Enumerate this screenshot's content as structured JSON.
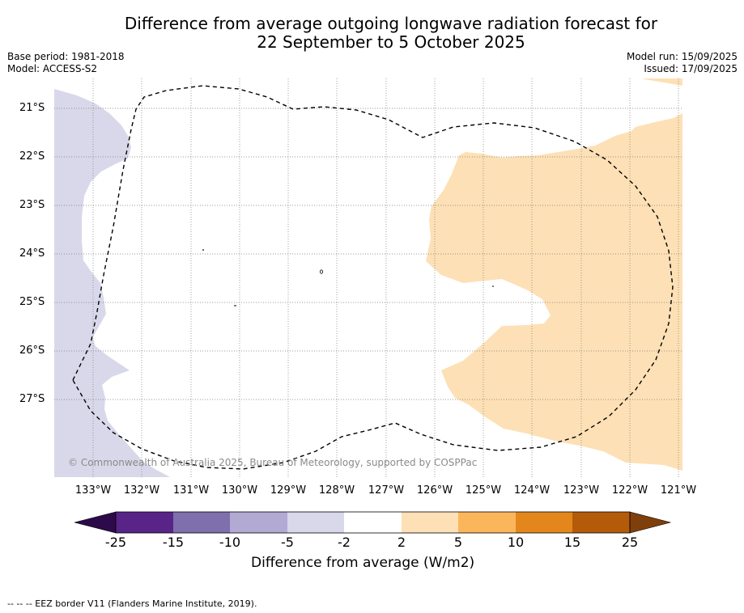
{
  "title_line1": "Difference from average outgoing longwave radiation forecast for",
  "title_line2": "22 September to 5 October 2025",
  "base_period": "Base period: 1981-2018",
  "model": "Model: ACCESS-S2",
  "model_run": "Model run: 15/09/2025",
  "issued": "Issued: 17/09/2025",
  "copyright": "© Commonwealth of Australia 2025, Bureau of Meteorology, supported by COSPPac",
  "footnote": "--  --  -- EEZ border V11 (Flanders Marine Institute, 2019).",
  "lat_labels": [
    "21°S",
    "22°S",
    "23°S",
    "24°S",
    "25°S",
    "26°S",
    "27°S"
  ],
  "lon_labels": [
    "133°W",
    "132°W",
    "131°W",
    "130°W",
    "129°W",
    "128°W",
    "127°W",
    "126°W",
    "125°W",
    "124°W",
    "123°W",
    "122°W",
    "121°W"
  ],
  "colorbar": {
    "title": "Difference from average (W/m2)",
    "ticks": [
      "-25",
      "-15",
      "-10",
      "-5",
      "-2",
      "2",
      "5",
      "10",
      "15",
      "25"
    ],
    "colors": {
      "below_min": "#2d0a4a",
      "n25_n15": "#582487",
      "n15_n10": "#7f6fad",
      "n10_n5": "#b2aad3",
      "n5_n2": "#d8d8ea",
      "n2_p2": "#ffffff",
      "p2_p5": "#fde0b5",
      "p5_p10": "#fbb65c",
      "p10_p15": "#e3871c",
      "p15_p25": "#b45b0a",
      "above_max": "#7f3f0b"
    }
  }
}
